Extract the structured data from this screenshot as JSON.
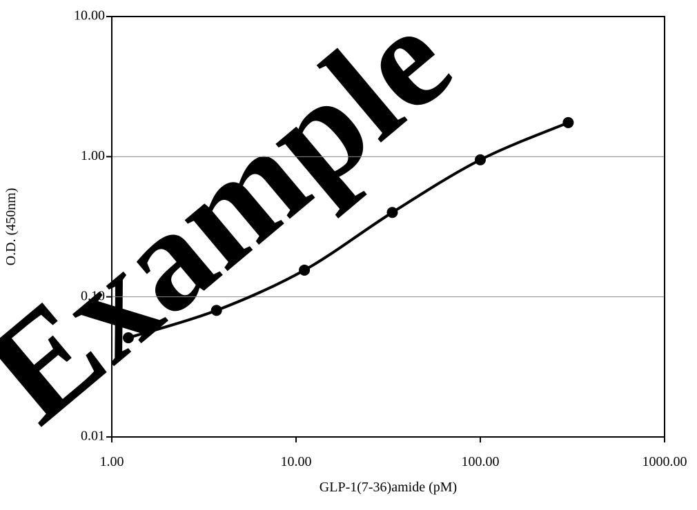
{
  "chart_data": {
    "type": "line",
    "xlabel": "GLP-1(7-36)amide (pM)",
    "ylabel": "O.D. (450nm)",
    "x_scale": "log",
    "y_scale": "log",
    "xlim": [
      1,
      1000
    ],
    "ylim": [
      0.01,
      10
    ],
    "x_ticks": [
      1,
      10,
      100,
      1000
    ],
    "x_tick_labels": [
      "1.00",
      "10.00",
      "100.00",
      "1000.00"
    ],
    "y_ticks": [
      0.01,
      0.1,
      1,
      10
    ],
    "y_tick_labels": [
      "0.01",
      "0.10",
      "1.00",
      "10.00"
    ],
    "grid": "horizontal major lines",
    "legend": "none",
    "series": [
      {
        "x": [
          1.23,
          3.7,
          11.1,
          33.3,
          100,
          300
        ],
        "y": [
          0.051,
          0.08,
          0.155,
          0.4,
          0.95,
          1.75
        ],
        "color": "#000000",
        "marker": "circle",
        "smooth": true
      }
    ],
    "watermark": "Example",
    "watermark_color": "#666666"
  }
}
